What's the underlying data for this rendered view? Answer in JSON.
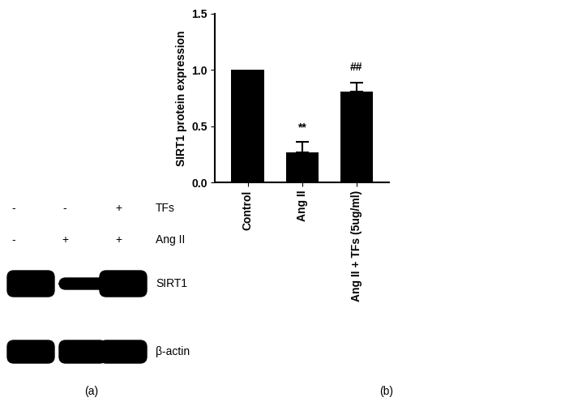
{
  "chart_data": {
    "type": "bar",
    "categories": [
      "Control",
      "Ang II",
      "Ang II + TFs (5ug/ml)"
    ],
    "values": [
      1.0,
      0.27,
      0.81
    ],
    "errors": [
      null,
      0.09,
      0.08
    ],
    "annotations": [
      null,
      "**",
      "##"
    ],
    "color": "#000000",
    "y_label": "SIRT1 protein expression",
    "ylim": [
      0,
      1.5
    ],
    "yticks": [
      {
        "value": 0,
        "label": "0.0"
      },
      {
        "value": 0.5,
        "label": "0.5"
      },
      {
        "value": 1.0,
        "label": "1.0"
      },
      {
        "value": 1.5,
        "label": "1.5"
      }
    ],
    "grid": false
  },
  "blot": {
    "rows": [
      {
        "label": "TFs",
        "lanes": [
          "-",
          "-",
          "+"
        ]
      },
      {
        "label": "Ang II",
        "lanes": [
          "-",
          "+",
          "+"
        ]
      }
    ],
    "bands": [
      "SIRT1",
      "β-actin"
    ]
  },
  "panel_labels": [
    "(a)",
    "(b)"
  ]
}
